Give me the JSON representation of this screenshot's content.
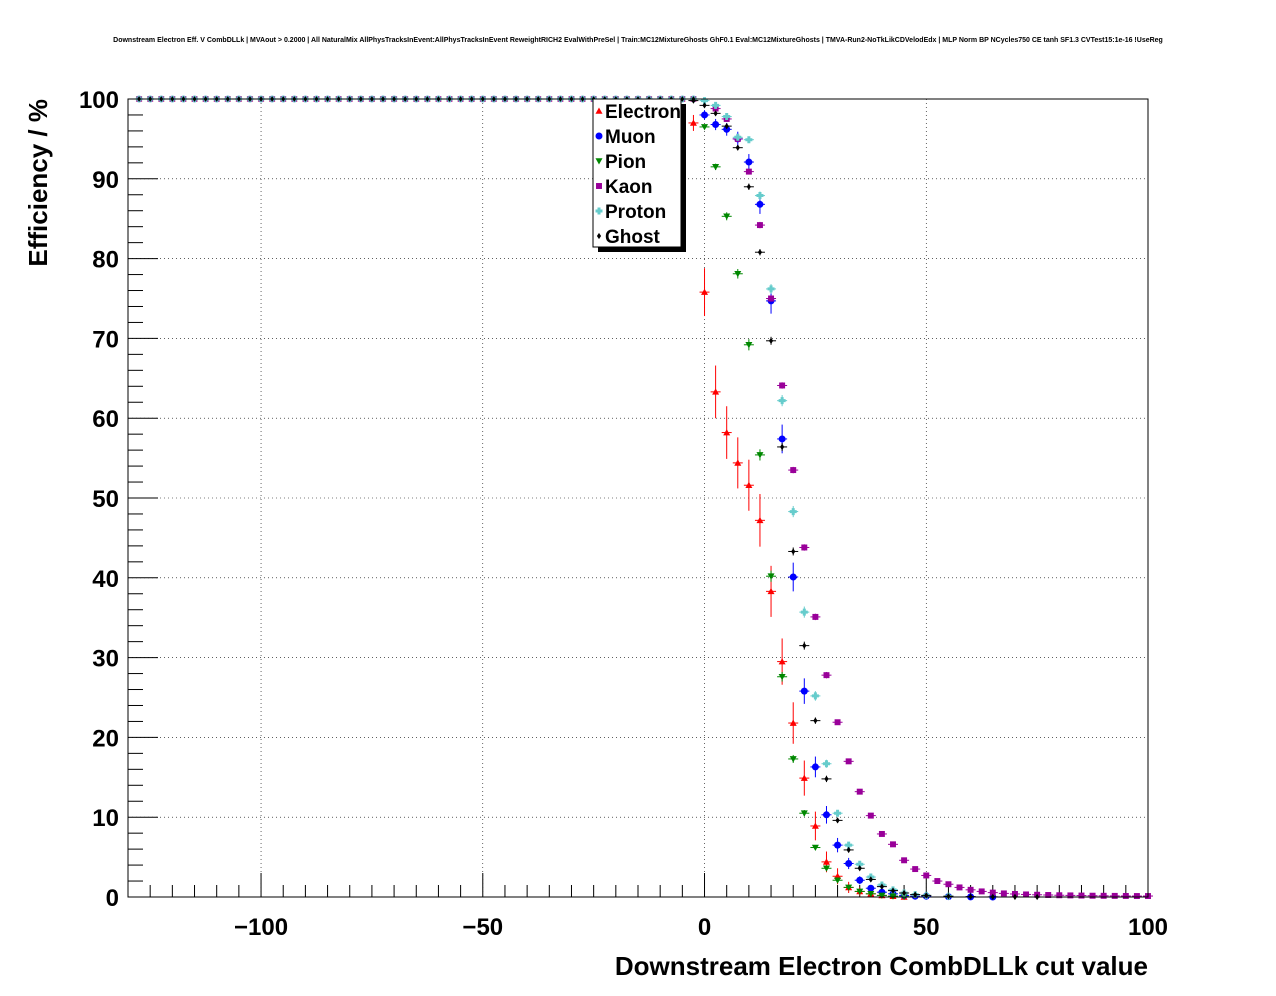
{
  "chart_data": {
    "type": "scatter",
    "title": "Downstream Electron Eff. V CombDLLk | MVAout > 0.2000 | All NaturalMix AllPhysTracksInEvent:AllPhysTracksInEvent ReweightRICH2 EvalWithPreSel | Train:MC12MixtureGhosts GhF0.1 Eval:MC12MixtureGhosts | TMVA-Run2-NoTkLikCDVelodEdx | MLP Norm BP NCycles750 CE tanh SF1.3 CVTest15:1e-16 !UseReg",
    "xlabel": "Downstream Electron CombDLLk cut value",
    "ylabel": "Efficiency / %",
    "xlim": [
      -130,
      100
    ],
    "ylim": [
      0,
      100
    ],
    "x_ticks": [
      -100,
      -50,
      0,
      50,
      100
    ],
    "x_tick_labels": [
      "−100",
      "−50",
      "0",
      "50",
      "100"
    ],
    "y_ticks": [
      0,
      10,
      20,
      30,
      40,
      50,
      60,
      70,
      80,
      90,
      100
    ],
    "y_tick_labels": [
      "0",
      "10",
      "20",
      "30",
      "40",
      "50",
      "60",
      "70",
      "80",
      "90",
      "100"
    ],
    "grid": true,
    "legend_position": "top-center",
    "series": [
      {
        "name": "Electron",
        "color": "#ff0000",
        "marker": "triangle-up",
        "x": [
          -2.5,
          0,
          2.5,
          5,
          7.5,
          10,
          12.5,
          15,
          17.5,
          20,
          22.5,
          25,
          27.5,
          30,
          32.5,
          35,
          37.5,
          40,
          42.5,
          45
        ],
        "y": [
          97,
          75.8,
          63.3,
          58.2,
          54.4,
          51.6,
          47.2,
          38.3,
          29.5,
          21.8,
          14.9,
          8.9,
          4.4,
          2.6,
          1.2,
          0.7,
          0.4,
          0.2,
          0.1,
          0
        ],
        "err": [
          1.0,
          3.0,
          3.3,
          3.3,
          3.2,
          3.2,
          3.3,
          3.2,
          2.9,
          2.6,
          2.2,
          1.8,
          1.3,
          1.0,
          0.7,
          0.5,
          0.4,
          0.3,
          0.2,
          0.1
        ]
      },
      {
        "name": "Muon",
        "color": "#0000ff",
        "marker": "circle",
        "x": [
          0,
          2.5,
          5,
          7.5,
          10,
          12.5,
          15,
          17.5,
          20,
          22.5,
          25,
          27.5,
          30,
          32.5,
          35,
          37.5,
          40,
          42.5,
          45,
          47.5,
          50,
          55,
          60,
          65
        ],
        "y": [
          98,
          96.8,
          96.2,
          95,
          92.1,
          86.8,
          74.7,
          57.4,
          40.1,
          25.8,
          16.3,
          10.3,
          6.5,
          4.2,
          2.1,
          1.1,
          0.6,
          0.4,
          0.2,
          0.1,
          0.1,
          0.05,
          0.02,
          0
        ],
        "err": [
          0.6,
          0.7,
          0.8,
          0.9,
          1.0,
          1.2,
          1.6,
          1.8,
          1.8,
          1.6,
          1.3,
          1.1,
          0.9,
          0.7,
          0.5,
          0.4,
          0.3,
          0.2,
          0.15,
          0.1,
          0.1,
          0.05,
          0.05,
          0
        ]
      },
      {
        "name": "Pion",
        "color": "#008800",
        "marker": "triangle-down",
        "x": [
          0,
          2.5,
          5,
          7.5,
          10,
          12.5,
          15,
          17.5,
          20,
          22.5,
          25,
          27.5,
          30,
          32.5,
          35,
          37.5,
          40,
          42.5,
          45
        ],
        "y": [
          96.5,
          91.5,
          85.3,
          78.1,
          69.2,
          55.4,
          40.2,
          27.6,
          17.3,
          10.5,
          6.2,
          3.6,
          2.1,
          1.2,
          0.7,
          0.4,
          0.2,
          0.1,
          0.05
        ],
        "err": [
          0.3,
          0.4,
          0.5,
          0.6,
          0.7,
          0.7,
          0.7,
          0.6,
          0.5,
          0.4,
          0.3,
          0.2,
          0.2,
          0.1,
          0.1,
          0.1,
          0.05,
          0.05,
          0.02
        ]
      },
      {
        "name": "Kaon",
        "color": "#990099",
        "marker": "square",
        "x": [
          2.5,
          5,
          7.5,
          10,
          12.5,
          15,
          17.5,
          20,
          22.5,
          25,
          27.5,
          30,
          32.5,
          35,
          37.5,
          40,
          42.5,
          45,
          47.5,
          50,
          52.5,
          55,
          57.5,
          60,
          62.5,
          65,
          67.5,
          70,
          72.5,
          75,
          77.5,
          80,
          82.5,
          85,
          87.5,
          90,
          92.5,
          95,
          97.5,
          100
        ],
        "y": [
          98.8,
          97.5,
          95.0,
          90.9,
          84.2,
          75.0,
          64.1,
          53.5,
          43.8,
          35.1,
          27.8,
          21.9,
          17.0,
          13.2,
          10.2,
          7.9,
          6.6,
          4.6,
          3.5,
          2.7,
          2.0,
          1.6,
          1.2,
          0.9,
          0.7,
          0.55,
          0.45,
          0.38,
          0.32,
          0.28,
          0.25,
          0.22,
          0.2,
          0.18,
          0.16,
          0.15,
          0.14,
          0.13,
          0.12,
          0.12
        ],
        "err": [
          0.2,
          0.2,
          0.3,
          0.3,
          0.4,
          0.4,
          0.4,
          0.4,
          0.4,
          0.4,
          0.4,
          0.3,
          0.3,
          0.3,
          0.3,
          0.2,
          0.2,
          0.2,
          0.15,
          0.15,
          0.1,
          0.1,
          0.1,
          0.1,
          0.1,
          0.05,
          0.05,
          0.05,
          0.05,
          0.05,
          0.05,
          0.05,
          0.05,
          0.05,
          0.05,
          0.05,
          0.05,
          0.05,
          0.05,
          0.05
        ]
      },
      {
        "name": "Proton",
        "color": "#66cccc",
        "marker": "cross",
        "x": [
          0,
          2.5,
          5,
          7.5,
          10,
          12.5,
          15,
          17.5,
          20,
          22.5,
          25,
          27.5,
          30,
          32.5,
          35,
          37.5,
          40,
          42.5,
          45,
          47.5,
          50,
          55
        ],
        "y": [
          99.8,
          99.2,
          97.8,
          95.2,
          94.9,
          87.9,
          76.2,
          62.2,
          48.3,
          35.7,
          25.2,
          16.7,
          10.5,
          6.5,
          4.1,
          2.5,
          1.5,
          0.9,
          0.5,
          0.3,
          0.2,
          0.1
        ],
        "err": [
          0.1,
          0.2,
          0.3,
          0.4,
          0.4,
          0.5,
          0.6,
          0.7,
          0.7,
          0.7,
          0.6,
          0.5,
          0.4,
          0.3,
          0.3,
          0.2,
          0.2,
          0.1,
          0.1,
          0.1,
          0.05,
          0.05
        ]
      },
      {
        "name": "Ghost",
        "color": "#000000",
        "marker": "diamond",
        "x": [
          -2.5,
          0,
          2.5,
          5,
          7.5,
          10,
          12.5,
          15,
          17.5,
          20,
          22.5,
          25,
          27.5,
          30,
          32.5,
          35,
          37.5,
          40,
          42.5,
          45,
          47.5,
          50,
          55,
          60,
          65,
          70,
          75
        ],
        "y": [
          99.8,
          99.2,
          98.2,
          96.6,
          93.9,
          89.0,
          80.8,
          69.7,
          56.4,
          43.3,
          31.5,
          22.1,
          14.8,
          9.6,
          5.9,
          3.6,
          2.2,
          1.3,
          0.8,
          0.5,
          0.3,
          0.2,
          0.1,
          0.05,
          0.02,
          0.01,
          0
        ],
        "err": [
          0.1,
          0.2,
          0.2,
          0.3,
          0.3,
          0.4,
          0.4,
          0.5,
          0.5,
          0.5,
          0.5,
          0.4,
          0.4,
          0.3,
          0.3,
          0.2,
          0.2,
          0.1,
          0.1,
          0.1,
          0.05,
          0.05,
          0.05,
          0.02,
          0.02,
          0.01,
          0
        ]
      }
    ],
    "plateau": {
      "x_start": -127.5,
      "x_end": -2.5,
      "x_step": 2.5,
      "y": 100
    }
  }
}
